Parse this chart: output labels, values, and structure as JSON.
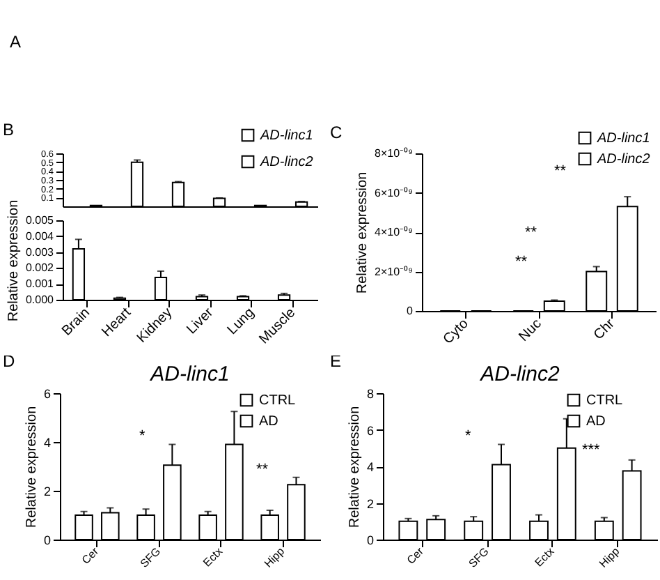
{
  "chart_data": [
    {
      "type": "other",
      "title": "A"
    },
    {
      "type": "bar",
      "annotations": [
        "B"
      ],
      "categories": [
        null,
        null,
        null,
        null,
        null,
        null
      ],
      "series": [
        {
          "name": "AD-linc2",
          "color": "#ffffff",
          "values": [
            0.01,
            0.5,
            0.27,
            0.09,
            0.01,
            0.05
          ],
          "errors": [
            null,
            0.025,
            0.01,
            0.005,
            null,
            0.005
          ]
        }
      ],
      "ylim": [
        0,
        0.6
      ],
      "yticks": [
        0.1,
        0.2,
        0.3,
        0.4,
        0.5,
        0.6
      ],
      "tick_labels": "y",
      "legend": "top right"
    },
    {
      "type": "bar",
      "ylabel": "Relative expression",
      "categories": [
        "Brain",
        "Heart",
        "Kidney",
        "Liver",
        "Lung",
        "Muscle"
      ],
      "series": [
        {
          "name": "AD-linc1",
          "color": "#ffffff",
          "values": [
            0.0032,
            0.0001,
            0.0014,
            0.0002,
            0.0002,
            0.0003
          ],
          "errors": [
            0.0006,
            5e-05,
            0.0004,
            0.0001,
            5e-05,
            0.0001
          ]
        }
      ],
      "legend": "top right",
      "ylim": [
        0,
        0.005
      ],
      "yticks": [
        {
          "value": 0,
          "label": "0.000"
        },
        {
          "value": 0.001,
          "label": "0.001"
        },
        {
          "value": 0.002,
          "label": "0.002"
        },
        {
          "value": 0.003,
          "label": "0.003"
        },
        {
          "value": 0.004,
          "label": "0.004"
        },
        {
          "value": 0.005,
          "label": "0.005"
        }
      ]
    },
    {
      "type": "bar",
      "ylabel": "Relative expression",
      "categories": [
        "Cyto",
        "Nuc",
        "Chr"
      ],
      "series": [
        {
          "name": "AD-linc1",
          "color": "#ffffff",
          "values": [
            0,
            0,
            2e-09
          ],
          "errors": [
            null,
            null,
            2.5e-10
          ]
        },
        {
          "name": "AD-linc2",
          "color": "#ffffff",
          "values": [
            0,
            5e-10,
            5.3e-09
          ],
          "errors": [
            null,
            5e-11,
            5e-10
          ]
        }
      ],
      "ylim": [
        0,
        8e-09
      ],
      "yticks": [
        0,
        {
          "value": 2e-09,
          "label": "2×10⁻⁰⁹"
        },
        {
          "value": 4e-09,
          "label": "4×10⁻⁰⁹"
        },
        {
          "value": 6e-09,
          "label": "6×10⁻⁰⁹"
        },
        {
          "value": 8e-09,
          "label": "8×10⁻⁰⁹"
        }
      ],
      "annotations": [
        "C",
        "**",
        "**",
        "**"
      ],
      "legend": "top right"
    },
    {
      "type": "bar",
      "title": "AD-linc1",
      "ylabel": "Relative expression",
      "categories": [
        "Cer",
        "SFG",
        "Ectx",
        "Hipp"
      ],
      "series": [
        {
          "name": "CTRL",
          "color": "#ffffff",
          "values": [
            1,
            1,
            1,
            1
          ],
          "errors": [
            0.15,
            0.25,
            0.15,
            0.2
          ]
        },
        {
          "name": "AD",
          "color": "#ffffff",
          "values": [
            1.1,
            3.05,
            3.9,
            2.25
          ],
          "errors": [
            0.2,
            0.85,
            1.35,
            0.3
          ]
        }
      ],
      "ylim": [
        0,
        6
      ],
      "yticks": [
        0,
        2,
        4,
        6
      ],
      "annotations": [
        "D",
        "*",
        "**"
      ],
      "legend": "top right"
    },
    {
      "type": "bar",
      "title": "AD-linc2",
      "ylabel": "Relative expression",
      "categories": [
        "Cer",
        "SFG",
        "Ectx",
        "Hipp"
      ],
      "series": [
        {
          "name": "CTRL",
          "color": "#ffffff",
          "values": [
            1,
            1,
            1,
            1
          ],
          "errors": [
            0.15,
            0.25,
            0.35,
            0.2
          ]
        },
        {
          "name": "AD",
          "color": "#ffffff",
          "values": [
            1.1,
            4.1,
            5.0,
            3.75
          ],
          "errors": [
            0.2,
            1.1,
            1.6,
            0.6
          ]
        }
      ],
      "ylim": [
        0,
        8
      ],
      "yticks": [
        0,
        2,
        4,
        6,
        8
      ],
      "annotations": [
        "E",
        "*",
        "***"
      ],
      "legend": "top right"
    }
  ]
}
